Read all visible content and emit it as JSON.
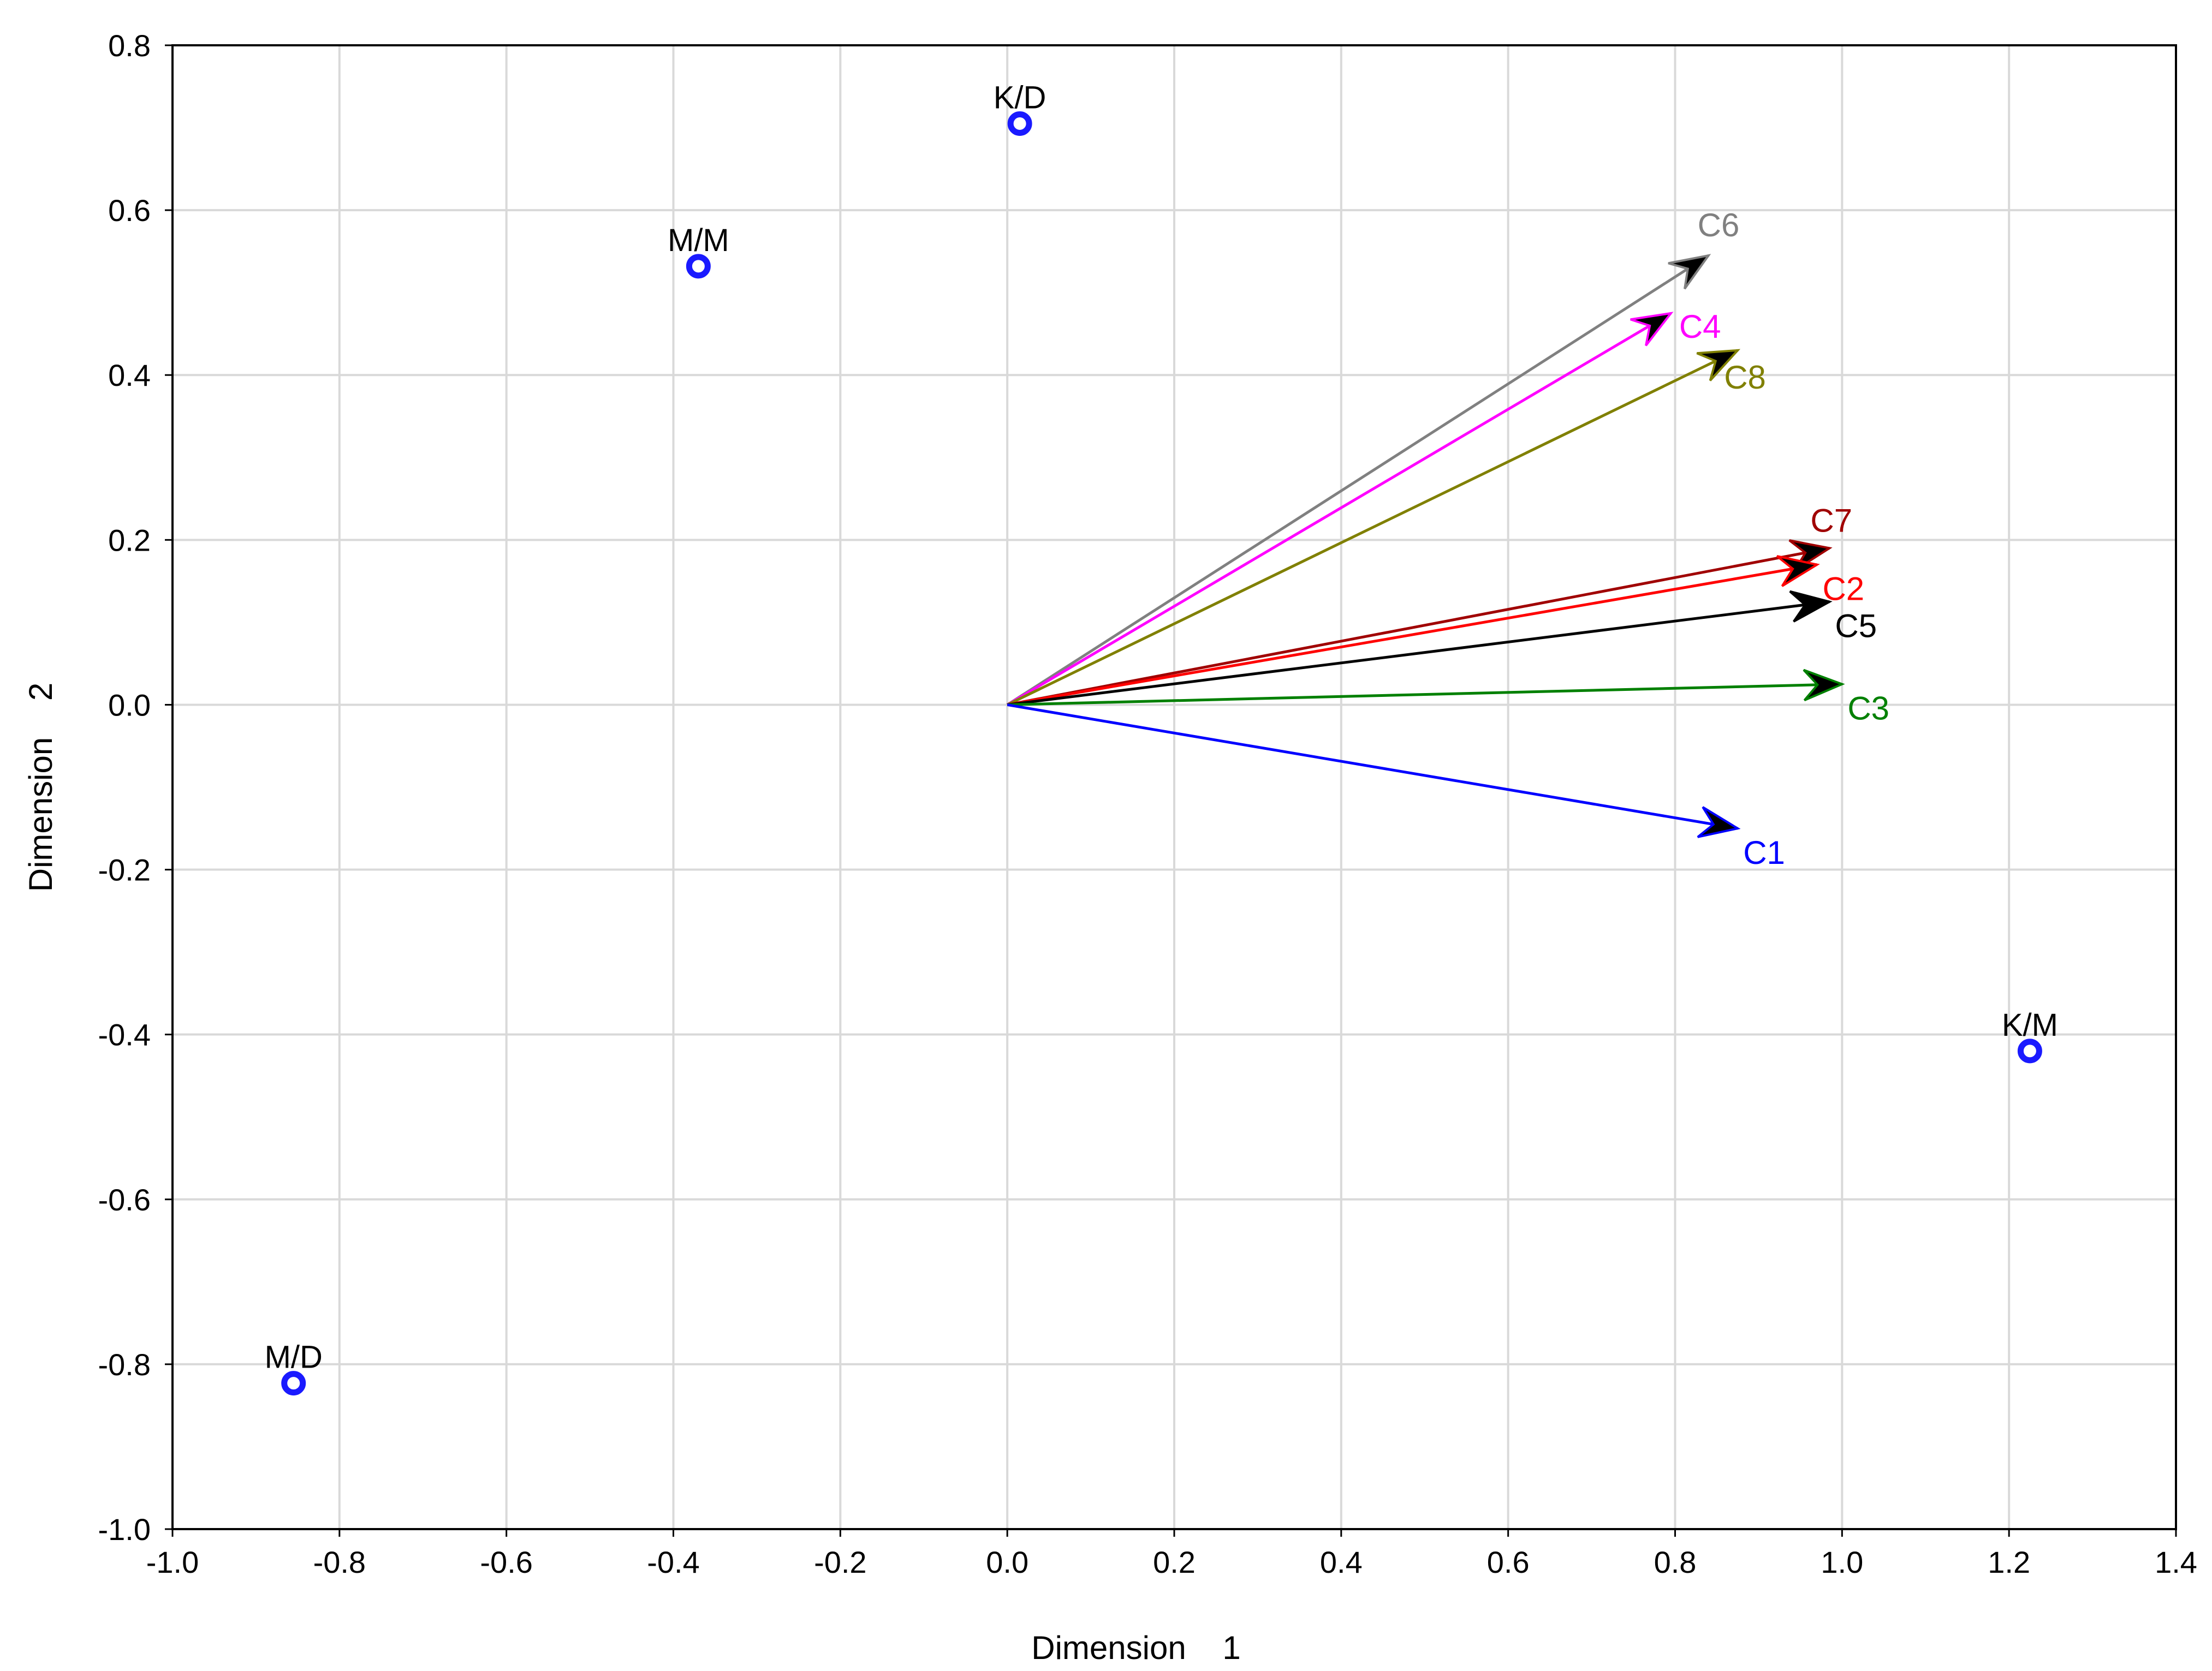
{
  "chart_data": {
    "type": "scatter",
    "title": "",
    "xlabel": "Dimension    1",
    "ylabel": "Dimension    2",
    "xlim": [
      -1.0,
      1.4
    ],
    "ylim": [
      -1.0,
      0.8
    ],
    "xticks": [
      "-1.0",
      "-0.8",
      "-0.6",
      "-0.4",
      "-0.2",
      "0.0",
      "0.2",
      "0.4",
      "0.6",
      "0.8",
      "1.0",
      "1.2",
      "1.4"
    ],
    "yticks": [
      "0.8",
      "0.6",
      "0.4",
      "0.2",
      "0.0",
      "-0.2",
      "-0.4",
      "-0.6",
      "-0.8",
      "-1.0"
    ],
    "grid": true,
    "points": [
      {
        "label": "K/D",
        "x": 0.015,
        "y": 0.705
      },
      {
        "label": "M/M",
        "x": -0.37,
        "y": 0.532
      },
      {
        "label": "K/M",
        "x": 1.225,
        "y": -0.42
      },
      {
        "label": "M/D",
        "x": -0.855,
        "y": -0.823
      }
    ],
    "point_color": "#1a1aff",
    "vectors": [
      {
        "label": "C6",
        "x": 0.84,
        "y": 0.545,
        "color": "#808080"
      },
      {
        "label": "C4",
        "x": 0.795,
        "y": 0.475,
        "color": "#ff00ff"
      },
      {
        "label": "C8",
        "x": 0.875,
        "y": 0.43,
        "color": "#808000"
      },
      {
        "label": "C7",
        "x": 0.985,
        "y": 0.19,
        "color": "#a00000"
      },
      {
        "label": "C2",
        "x": 0.97,
        "y": 0.17,
        "color": "#ff0000"
      },
      {
        "label": "C5",
        "x": 0.985,
        "y": 0.125,
        "color": "#000000"
      },
      {
        "label": "C3",
        "x": 1.0,
        "y": 0.025,
        "color": "#008000"
      },
      {
        "label": "C1",
        "x": 0.875,
        "y": -0.15,
        "color": "#0000ff"
      }
    ]
  }
}
